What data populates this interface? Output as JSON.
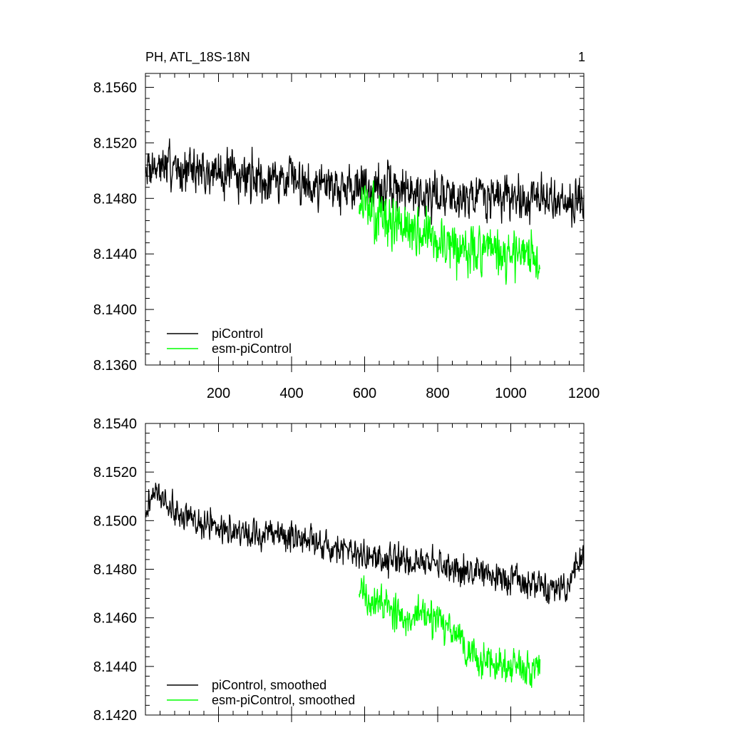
{
  "chart_data": [
    {
      "type": "line",
      "title": "PH, ATL_18S-18N",
      "corner_label": "1",
      "xlim": [
        0,
        1200
      ],
      "ylim": [
        8.136,
        8.157
      ],
      "xticks": [
        200,
        400,
        600,
        800,
        1000,
        1200
      ],
      "xtick_labels": [
        "200",
        "400",
        "600",
        "800",
        "1000",
        "1200"
      ],
      "yticks": [
        8.136,
        8.14,
        8.144,
        8.148,
        8.152,
        8.156
      ],
      "ytick_labels": [
        "8.1360",
        "8.1400",
        "8.1440",
        "8.1480",
        "8.1520",
        "8.1560"
      ],
      "legend_position": "lower-left",
      "series": [
        {
          "name": "piControl",
          "color": "#000000",
          "x_range": [
            1,
            1200
          ],
          "trend": [
            [
              0,
              8.1505
            ],
            [
              200,
              8.1498
            ],
            [
              400,
              8.1493
            ],
            [
              600,
              8.1488
            ],
            [
              800,
              8.1483
            ],
            [
              1000,
              8.148
            ],
            [
              1200,
              8.1478
            ]
          ],
          "noise_amplitude": 0.0024,
          "seed": 7
        },
        {
          "name": "esm-piControl",
          "color": "#00ff00",
          "x_range": [
            585,
            1080
          ],
          "trend": [
            [
              585,
              8.1475
            ],
            [
              700,
              8.1458
            ],
            [
              850,
              8.1445
            ],
            [
              1000,
              8.1438
            ],
            [
              1080,
              8.1435
            ]
          ],
          "noise_amplitude": 0.0027,
          "seed": 13
        }
      ]
    },
    {
      "type": "line",
      "title": "",
      "xlim": [
        0,
        1200
      ],
      "ylim": [
        8.142,
        8.154
      ],
      "xticks": [
        200,
        400,
        600,
        800,
        1000,
        1200
      ],
      "xtick_labels": [],
      "yticks": [
        8.142,
        8.144,
        8.146,
        8.148,
        8.15,
        8.152,
        8.154
      ],
      "ytick_labels": [
        "8.1420",
        "8.1440",
        "8.1460",
        "8.1480",
        "8.1500",
        "8.1520",
        "8.1540"
      ],
      "legend_position": "lower-left",
      "series": [
        {
          "name": "piControl, smoothed",
          "color": "#000000",
          "x_range": [
            1,
            1200
          ],
          "trend": [
            [
              0,
              8.1505
            ],
            [
              30,
              8.1512
            ],
            [
              100,
              8.1502
            ],
            [
              200,
              8.1496
            ],
            [
              300,
              8.1495
            ],
            [
              400,
              8.1494
            ],
            [
              500,
              8.149
            ],
            [
              600,
              8.1485
            ],
            [
              800,
              8.1482
            ],
            [
              1000,
              8.1476
            ],
            [
              1150,
              8.1472
            ],
            [
              1200,
              8.1486
            ]
          ],
          "noise_amplitude": 0.0009,
          "seed": 21
        },
        {
          "name": "esm-piControl, smoothed",
          "color": "#00ff00",
          "x_range": [
            585,
            1080
          ],
          "trend": [
            [
              585,
              8.1472
            ],
            [
              620,
              8.1468
            ],
            [
              700,
              8.1462
            ],
            [
              780,
              8.146
            ],
            [
              850,
              8.1452
            ],
            [
              900,
              8.1443
            ],
            [
              1000,
              8.144
            ],
            [
              1080,
              8.1438
            ]
          ],
          "noise_amplitude": 0.0011,
          "seed": 33
        }
      ]
    }
  ]
}
